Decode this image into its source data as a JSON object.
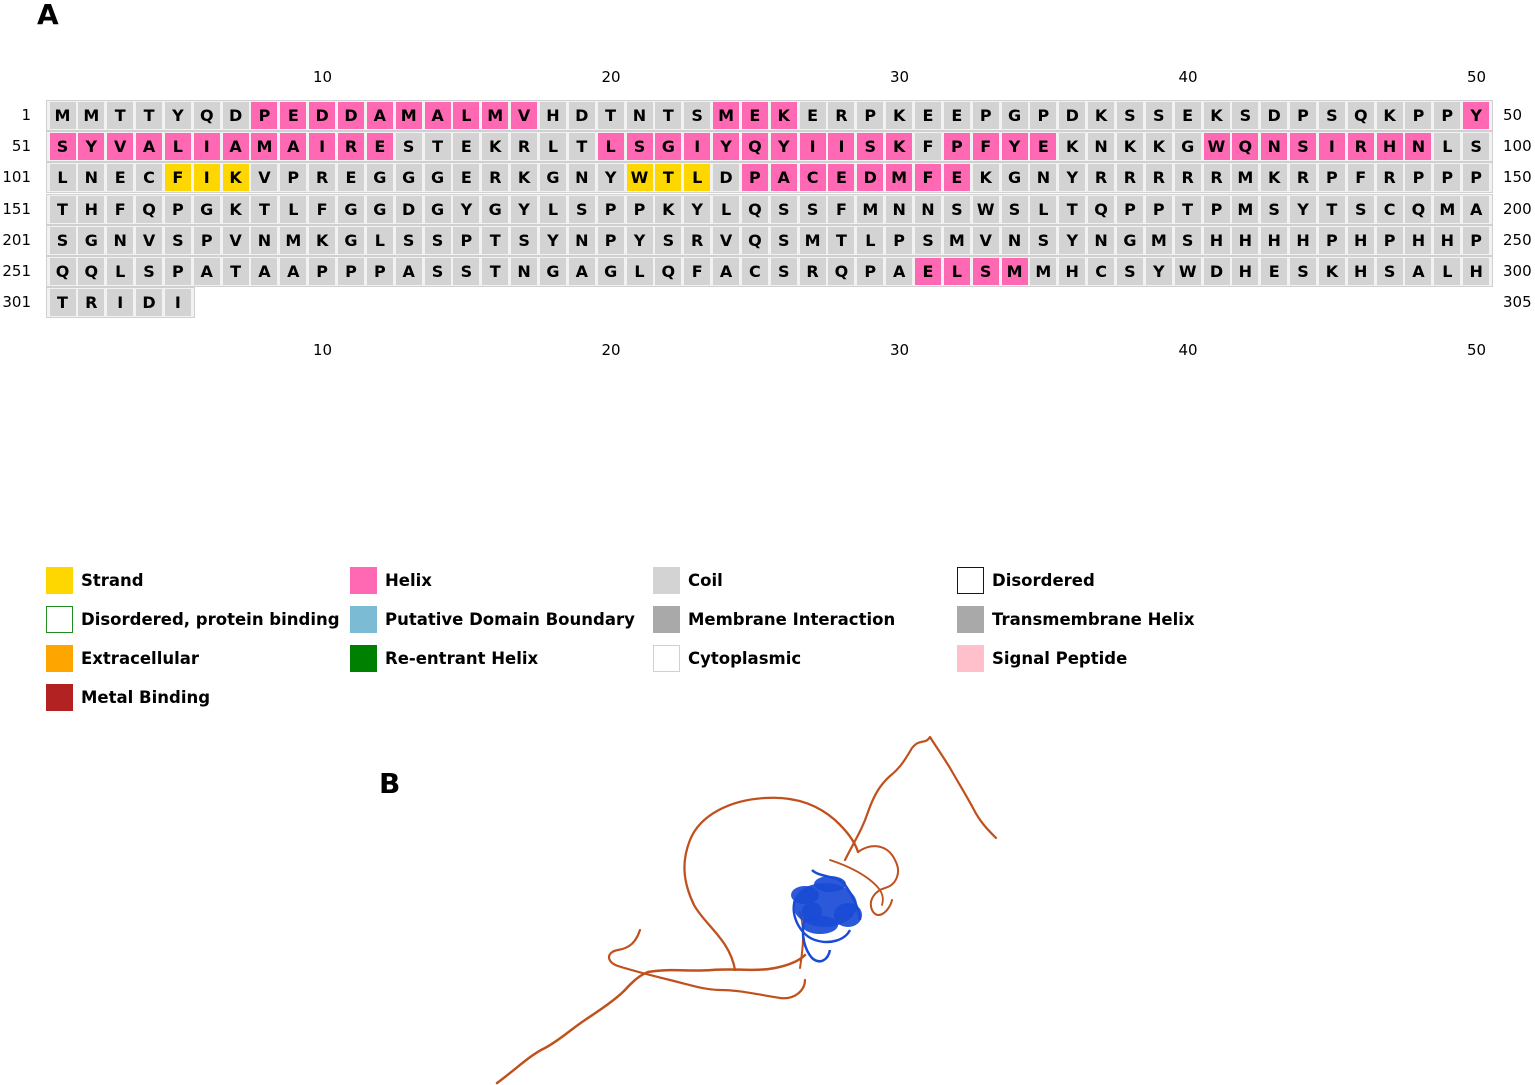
{
  "panel_a_label": "A",
  "panel_b_label": "B",
  "ticks": [
    "10",
    "20",
    "30",
    "40",
    "50"
  ],
  "rows": [
    {
      "start": "1",
      "end": "50",
      "seq": "MMTTYQDPEDDAMALMVHDTNTSMEKERPKEEPGPDKSSEKSDPSQKPPY",
      "ss": "CCCCCCCHHHHHHHHHHCCCCCCHHHCCCCCCCCCCCCCCCCCCCCCCCH"
    },
    {
      "start": "51",
      "end": "100",
      "seq": "SYVALIAMAIRESTEKRLTLSGIYQYIISKFPFYEKNKKGWQNSIRHNLS",
      "ss": "HHHHHHHHHHHHCCCCCCCHHHHHHHHHHHCHHHHCCCCCHHHHHHHHCC"
    },
    {
      "start": "101",
      "end": "150",
      "seq": "LNECFIKVPREGGGERKGNYWTLDPACEDMFEKGNYRRRRRMKRPFRPPP",
      "ss": "CCCCEEECCCCCCCCCCCCCEEECHHHHHHHHCCCCCCCCCCCCCCCCCC"
    },
    {
      "start": "151",
      "end": "200",
      "seq": "THFQPGKTLFGGDGYGYLSPPKYLQSSFMNNSWSLTQPPTPMSYTSCQMA",
      "ss": "CCCCCCCCCCCCCCCCCCCCCCCCCCCCCCCCCCCCCCCCCCCCCCCCCC"
    },
    {
      "start": "201",
      "end": "250",
      "seq": "SGNVSPVNMKGLSSPTSYNPYSRVQSMTLPSMVNSYNGMSHHHHPHPHHP",
      "ss": "CCCCCCCCCCCCCCCCCCCCCCCCCCCCCCCCCCCCCCCCCCCCCCCCCC"
    },
    {
      "start": "251",
      "end": "300",
      "seq": "QQLSPATAAPPPASSTNGAGLQFACSRQPAELSMMHCSYWDHESKHSALH",
      "ss": "CCCCCCCCCCCCCCCCCCCCCCCCCCCCCCHHHHCCCCCCCCCCCCCCCC"
    },
    {
      "start": "301",
      "end": "305",
      "seq": "TRIDI",
      "ss": "CCCCC"
    }
  ],
  "legend": [
    {
      "label": "Strand",
      "color": "#FFD700",
      "outline": false
    },
    {
      "label": "Helix",
      "color": "#FF69B4",
      "outline": false
    },
    {
      "label": "Coil",
      "color": "#D3D3D3",
      "outline": false
    },
    {
      "label": "Disordered",
      "color": "#0000CD",
      "outline": true
    },
    {
      "label": "Disordered, protein binding",
      "color": "#228B22",
      "outline": true
    },
    {
      "label": "Putative Domain Boundary",
      "color": "#7BBBD3",
      "outline": false
    },
    {
      "label": "Membrane Interaction",
      "color": "#A9A9A9",
      "outline": false
    },
    {
      "label": "Transmembrane Helix",
      "color": "#A9A9A9",
      "outline": false
    },
    {
      "label": "Extracellular",
      "color": "#FFA500",
      "outline": false
    },
    {
      "label": "Re-entrant Helix",
      "color": "#008000",
      "outline": false
    },
    {
      "label": "Cytoplasmic",
      "color": "#FFFFFF",
      "outline": true
    },
    {
      "label": "Signal Peptide",
      "color": "#FFC0CB",
      "outline": false
    },
    {
      "label": "Metal Binding",
      "color": "#B22222",
      "outline": false
    }
  ],
  "ss_colors": {
    "H": "#FF69B4",
    "E": "#FFD700",
    "C": "#D3D3D3"
  },
  "structure_colors": {
    "disordered": "#C0501C",
    "ordered": "#1A4BD6"
  }
}
